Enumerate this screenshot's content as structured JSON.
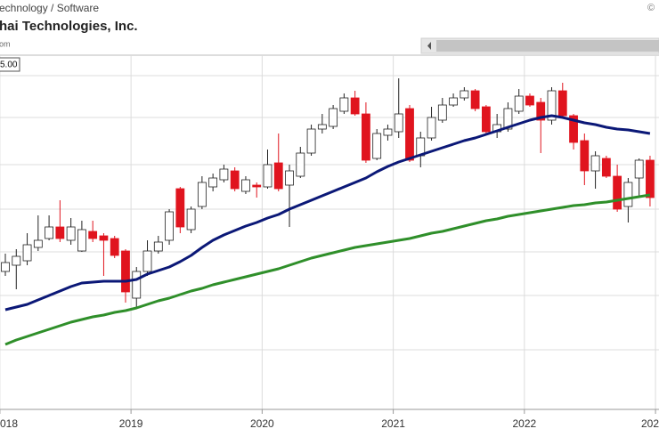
{
  "chart_data": {
    "type": "candlestick",
    "sector": "echnology / Software",
    "title": "hai Technologies, Inc.",
    "source": "om",
    "copyright": "©",
    "price_label": "5.00",
    "categories": [
      null,
      null,
      null,
      null,
      null,
      null,
      null,
      null,
      null,
      null,
      null,
      null,
      null,
      null,
      null,
      null,
      null,
      null,
      null,
      null,
      null,
      null,
      null,
      null,
      null,
      null,
      null,
      null,
      null,
      null,
      null,
      null,
      null,
      null,
      null,
      null,
      null,
      null,
      null,
      null,
      null,
      null,
      null,
      null,
      null,
      null,
      null,
      null,
      null,
      null,
      null,
      null,
      null,
      null,
      null,
      null,
      null,
      null,
      null,
      null
    ],
    "open": [
      155,
      162,
      167,
      182,
      192,
      205,
      190,
      178,
      200,
      195,
      192,
      178,
      125,
      155,
      178,
      190,
      248,
      202,
      228,
      250,
      258,
      268,
      245,
      252,
      250,
      277,
      252,
      262,
      288,
      315,
      318,
      335,
      350,
      332,
      282,
      308,
      312,
      338,
      285,
      305,
      325,
      342,
      350,
      358,
      340,
      312,
      315,
      335,
      352,
      345,
      325,
      358,
      330,
      302,
      268,
      282,
      262,
      228,
      260,
      280
    ],
    "high": [
      175,
      180,
      198,
      218,
      218,
      235,
      215,
      212,
      212,
      198,
      195,
      180,
      160,
      190,
      195,
      225,
      250,
      228,
      262,
      265,
      275,
      272,
      262,
      255,
      292,
      310,
      275,
      295,
      320,
      332,
      342,
      355,
      358,
      345,
      315,
      320,
      372,
      342,
      312,
      340,
      350,
      355,
      362,
      360,
      342,
      332,
      345,
      360,
      355,
      350,
      362,
      367,
      332,
      310,
      290,
      285,
      275,
      260,
      282,
      285
    ],
    "low": [
      150,
      135,
      162,
      178,
      190,
      188,
      185,
      177,
      188,
      150,
      170,
      120,
      115,
      150,
      175,
      185,
      198,
      198,
      225,
      245,
      255,
      245,
      242,
      238,
      248,
      245,
      205,
      260,
      285,
      310,
      315,
      332,
      330,
      277,
      280,
      302,
      305,
      278,
      272,
      302,
      322,
      340,
      347,
      335,
      310,
      305,
      312,
      332,
      340,
      288,
      320,
      327,
      292,
      252,
      248,
      260,
      222,
      210,
      240,
      228
    ],
    "close": [
      165,
      172,
      185,
      190,
      205,
      192,
      205,
      202,
      192,
      190,
      173,
      132,
      155,
      178,
      188,
      222,
      205,
      225,
      255,
      260,
      270,
      248,
      258,
      250,
      275,
      248,
      268,
      288,
      315,
      320,
      338,
      350,
      332,
      280,
      310,
      315,
      332,
      280,
      305,
      328,
      342,
      350,
      358,
      338,
      312,
      320,
      338,
      352,
      342,
      325,
      358,
      330,
      300,
      268,
      285,
      262,
      225,
      255,
      280,
      238
    ],
    "up_color": "#ffffff",
    "down_color": "#e0141e",
    "series": [
      {
        "color": "#0b1877",
        "values": [
          112,
          115,
          118,
          123,
          128,
          133,
          138,
          142,
          143,
          144,
          144,
          144,
          146,
          152,
          156,
          160,
          166,
          173,
          182,
          190,
          196,
          201,
          206,
          210,
          215,
          219,
          225,
          230,
          235,
          240,
          245,
          250,
          255,
          260,
          267,
          273,
          278,
          282,
          286,
          290,
          294,
          298,
          302,
          305,
          309,
          313,
          317,
          321,
          325,
          328,
          330,
          328,
          325,
          322,
          320,
          317,
          315,
          314,
          312,
          310
        ]
      },
      {
        "color": "#2f8f2a",
        "values": [
          73,
          78,
          82,
          86,
          90,
          94,
          98,
          101,
          104,
          106,
          109,
          111,
          114,
          118,
          122,
          125,
          129,
          133,
          136,
          140,
          143,
          146,
          149,
          152,
          155,
          158,
          162,
          166,
          170,
          173,
          176,
          179,
          182,
          184,
          186,
          188,
          190,
          192,
          195,
          198,
          200,
          203,
          206,
          209,
          212,
          214,
          217,
          219,
          221,
          223,
          225,
          227,
          229,
          230,
          232,
          233,
          235,
          237,
          239,
          241
        ]
      }
    ],
    "ylim": [
      0,
      398
    ],
    "yticks": [
      67,
      128,
      177,
      225,
      275,
      328,
      375
    ],
    "xlim": [
      -0.49,
      59.82
    ],
    "xticks": [
      {
        "value": -0.5,
        "label": "018"
      },
      {
        "value": 11.5,
        "label": "2019"
      },
      {
        "value": 23.5,
        "label": "2020"
      },
      {
        "value": 35.5,
        "label": "2021"
      },
      {
        "value": 47.5,
        "label": "2022"
      },
      {
        "value": 59.5,
        "label": "202"
      }
    ],
    "grid": true
  }
}
